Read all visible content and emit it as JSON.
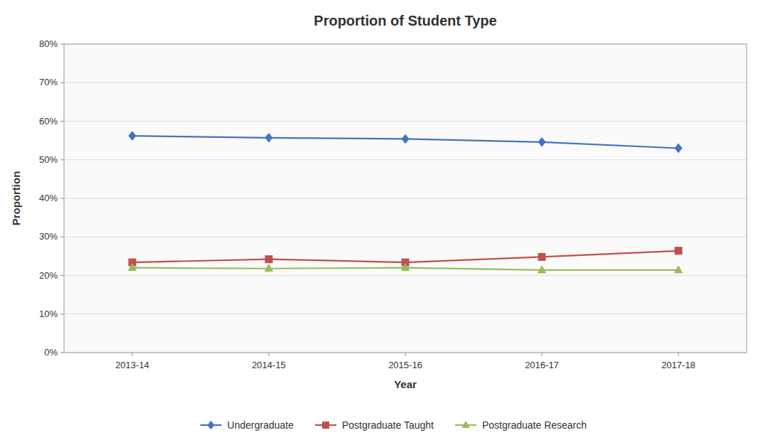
{
  "chart_data": {
    "type": "line",
    "title": "Proportion of Student Type",
    "xlabel": "Year",
    "ylabel": "Proportion",
    "categories": [
      "2013-14",
      "2014-15",
      "2015-16",
      "2016-17",
      "2017-18"
    ],
    "series": [
      {
        "name": "Undergraduate",
        "color": "#4472C4",
        "marker": "diamond",
        "values": [
          0.562,
          0.557,
          0.554,
          0.546,
          0.53
        ]
      },
      {
        "name": "Postgraduate Taught",
        "color": "#C0504D",
        "marker": "square",
        "values": [
          0.234,
          0.242,
          0.234,
          0.248,
          0.264
        ]
      },
      {
        "name": "Postgraduate Research",
        "color": "#9BBB59",
        "marker": "triangle",
        "values": [
          0.22,
          0.218,
          0.22,
          0.214,
          0.214
        ]
      }
    ],
    "ylim": [
      0.0,
      0.8
    ],
    "yticks": [
      {
        "value": 0.0,
        "label": "0%"
      },
      {
        "value": 0.1,
        "label": "10%"
      },
      {
        "value": 0.2,
        "label": "20%"
      },
      {
        "value": 0.3,
        "label": "30%"
      },
      {
        "value": 0.4,
        "label": "40%"
      },
      {
        "value": 0.5,
        "label": "50%"
      },
      {
        "value": 0.6,
        "label": "60%"
      },
      {
        "value": 0.7,
        "label": "70%"
      },
      {
        "value": 0.8,
        "label": "80%"
      }
    ],
    "grid": true,
    "legend": "bottom"
  }
}
